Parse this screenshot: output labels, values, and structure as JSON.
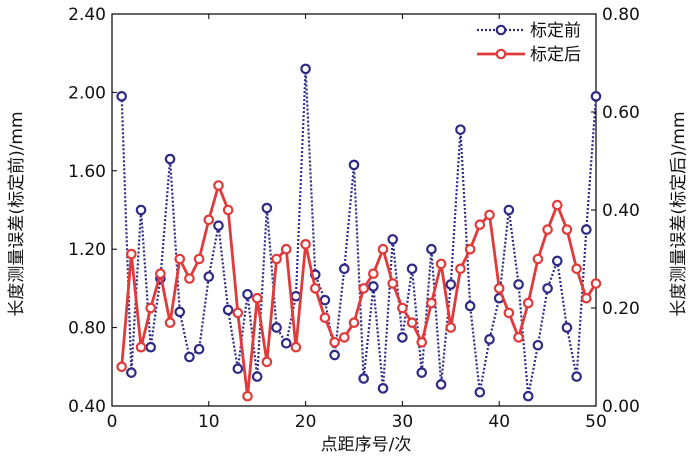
{
  "chart_data": {
    "type": "line",
    "title": "",
    "xlabel": "点距序号/次",
    "ylabel_left": "长度测量误差(标定前)/mm",
    "ylabel_right": "长度测量误差(标定后)/mm",
    "xlim": [
      0,
      50
    ],
    "x_ticks": [
      "0",
      "10",
      "20",
      "30",
      "40",
      "50"
    ],
    "ylim_left": [
      0.4,
      2.4
    ],
    "y_ticks_left": [
      "0.40",
      "0.80",
      "1.20",
      "1.60",
      "2.00",
      "2.40"
    ],
    "ylim_right": [
      0,
      0.8
    ],
    "y_ticks_right": [
      "0.00",
      "0.20",
      "0.40",
      "0.60",
      "0.80"
    ],
    "grid": false,
    "legend_position": "top-right",
    "x": [
      1,
      2,
      3,
      4,
      5,
      6,
      7,
      8,
      9,
      10,
      11,
      12,
      13,
      14,
      15,
      16,
      17,
      18,
      19,
      20,
      21,
      22,
      23,
      24,
      25,
      26,
      27,
      28,
      29,
      30,
      31,
      32,
      33,
      34,
      35,
      36,
      37,
      38,
      39,
      40,
      41,
      42,
      43,
      44,
      45,
      46,
      47,
      48,
      49,
      50
    ],
    "series": [
      {
        "name": "标定前",
        "axis": "left",
        "color": "#2e2a85",
        "values": [
          1.98,
          0.57,
          1.4,
          0.7,
          1.05,
          1.66,
          0.88,
          0.65,
          0.69,
          1.06,
          1.32,
          0.89,
          0.59,
          0.97,
          0.55,
          1.41,
          0.8,
          0.72,
          0.96,
          2.12,
          1.07,
          0.94,
          0.66,
          1.1,
          1.63,
          0.54,
          1.01,
          0.49,
          1.25,
          0.75,
          1.1,
          0.57,
          1.2,
          0.51,
          1.02,
          1.81,
          0.91,
          0.47,
          0.74,
          0.95,
          1.4,
          1.02,
          0.45,
          0.71,
          1.0,
          1.14,
          0.8,
          0.55,
          1.3,
          1.98
        ]
      },
      {
        "name": "标定后",
        "axis": "right",
        "color": "#e03a3a",
        "values": [
          0.08,
          0.31,
          0.12,
          0.2,
          0.27,
          0.17,
          0.3,
          0.26,
          0.3,
          0.38,
          0.45,
          0.4,
          0.19,
          0.02,
          0.22,
          0.09,
          0.3,
          0.32,
          0.12,
          0.33,
          0.24,
          0.18,
          0.13,
          0.14,
          0.17,
          0.24,
          0.27,
          0.32,
          0.25,
          0.2,
          0.17,
          0.13,
          0.21,
          0.29,
          0.16,
          0.28,
          0.32,
          0.37,
          0.39,
          0.24,
          0.19,
          0.14,
          0.21,
          0.3,
          0.36,
          0.41,
          0.36,
          0.28,
          0.22,
          0.25
        ]
      }
    ]
  }
}
